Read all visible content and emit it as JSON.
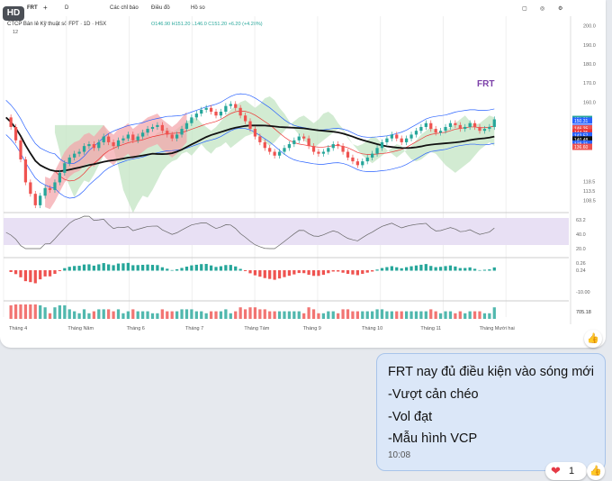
{
  "badge": "HD",
  "toolbar": {
    "symbol": "FRT",
    "plus": "+",
    "interval": "D",
    "indicators": "Các chỉ báo",
    "layout": "Điều đồ",
    "profile": "Hồ so"
  },
  "chart_header": {
    "legend_title": "CTCP Bán lẻ Kỹ thuật số FPT · 1D · HSX",
    "ohlc": "O146.90 H151.20 L146.0 C151.20 +6.20 (+4.28%)",
    "bar_count": "12"
  },
  "chart_label": "FRT",
  "chart_data": {
    "type": "candlestick",
    "title": "CTCP Bán lẻ Kỹ thuật số FPT · 1D · HSX",
    "xlabel": "",
    "ylabel": "",
    "x_ticks": [
      "Tháng 4",
      "Tháng Năm",
      "Tháng 6",
      "Tháng 7",
      "Tháng Tám",
      "Tháng 9",
      "Tháng 10",
      "Tháng 11",
      "Tháng Mười hai"
    ],
    "y_ticks": [
      200.0,
      190.0,
      180.0,
      170.0,
      160.0,
      118.5,
      113.5,
      108.5
    ],
    "price_tags": [
      151.2,
      150.31,
      146.63,
      146.31,
      146.25,
      144.25,
      142.57,
      140.48,
      138.31,
      136.6
    ],
    "ylim": [
      105,
      205
    ],
    "close": [
      152,
      147,
      140,
      130,
      118,
      112,
      106,
      111,
      115,
      114,
      118,
      123,
      128,
      131,
      133,
      134,
      137,
      138,
      136,
      139,
      142,
      139,
      137,
      140,
      141,
      143,
      140,
      142,
      144,
      146,
      147,
      148,
      145,
      143,
      141,
      143,
      146,
      149,
      152,
      154,
      156,
      157,
      155,
      153,
      155,
      158,
      159,
      157,
      153,
      150,
      146,
      142,
      139,
      136,
      134,
      132,
      134,
      136,
      138,
      140,
      142,
      141,
      137,
      134,
      133,
      134,
      136,
      138,
      137,
      134,
      131,
      129,
      127,
      129,
      131,
      133,
      136,
      139,
      141,
      143,
      141,
      139,
      141,
      143,
      145,
      147,
      149,
      146,
      144,
      145,
      147,
      149,
      148,
      146,
      147,
      149,
      147,
      145,
      146,
      147,
      151
    ],
    "ichimoku_cloud_color": "#f4a3a8",
    "cloud_color_bull": "#bfe3bf",
    "rsi": {
      "ticks": [
        63.2,
        40.0,
        20.0
      ],
      "series_color": "#666666",
      "band_color": "#e8e0f4"
    },
    "macd": {
      "values": [
        0.26,
        0.24,
        -10.0
      ]
    },
    "volume": {
      "value": "705.18"
    },
    "colors": {
      "up": "#26a69a",
      "down": "#ef5350",
      "ma": "#111111",
      "bb": "#2962ff"
    }
  },
  "message": {
    "lines": [
      "FRT nay đủ điều kiện vào sóng mới",
      "-Vượt cản chéo",
      "-Vol đạt",
      "-Mẫu hình VCP"
    ],
    "time": "10:08"
  },
  "reaction": {
    "emoji": "❤",
    "count": "1"
  },
  "icons": [
    "like-icon",
    "heart-icon",
    "camera-icon",
    "fullscreen-icon",
    "settings-icon"
  ]
}
